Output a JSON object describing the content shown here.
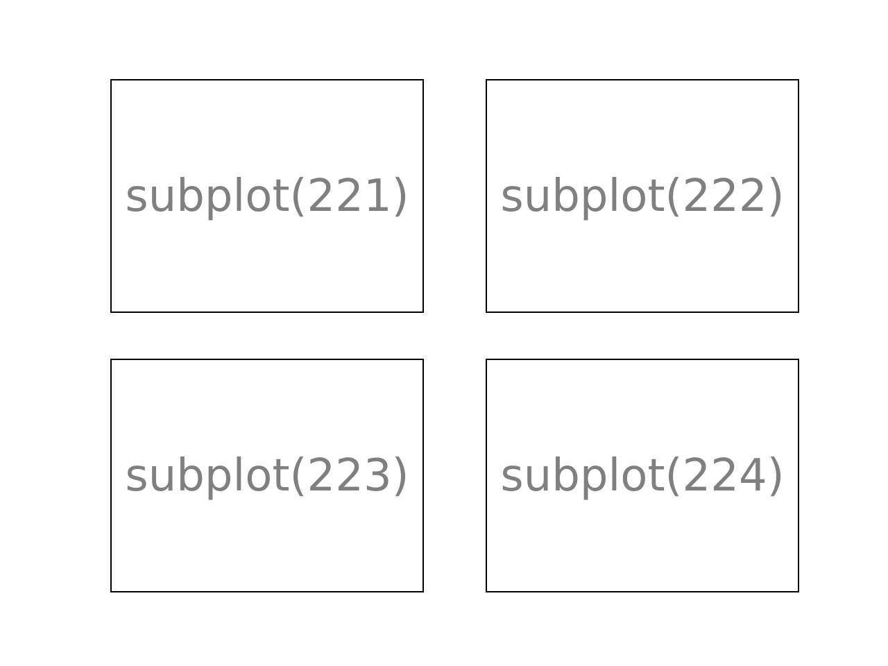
{
  "text_color": "#808080",
  "border_color": "#000000",
  "panels": [
    {
      "label": "subplot(221)"
    },
    {
      "label": "subplot(222)"
    },
    {
      "label": "subplot(223)"
    },
    {
      "label": "subplot(224)"
    }
  ]
}
